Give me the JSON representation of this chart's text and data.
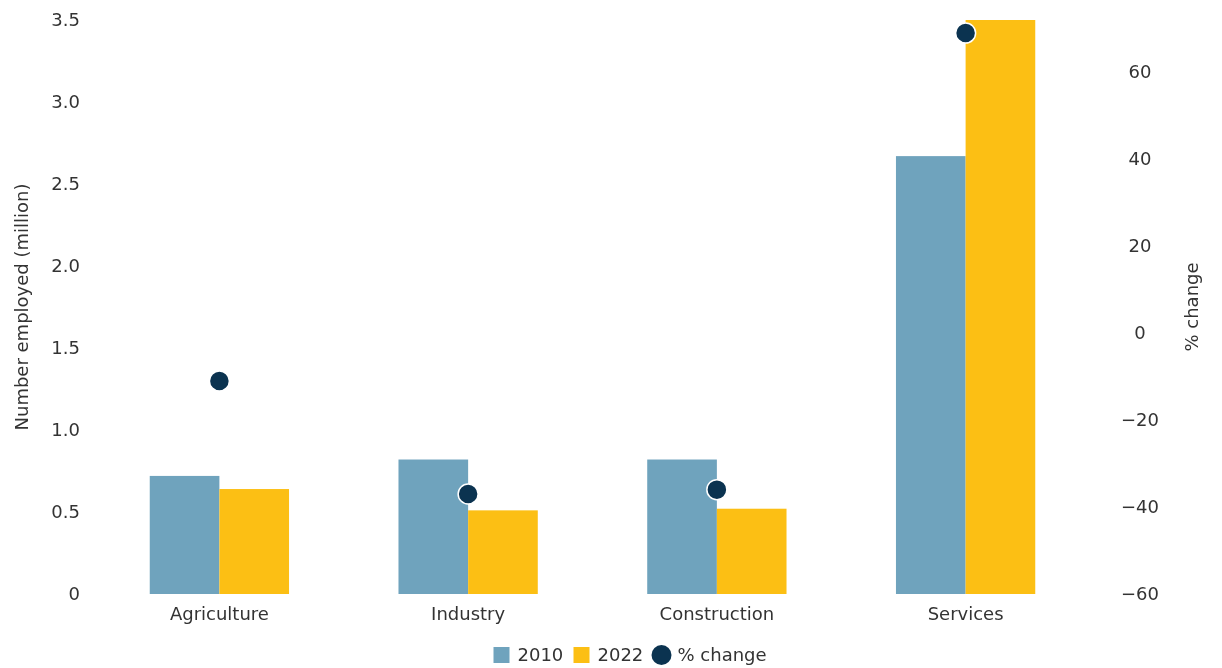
{
  "chart_data": {
    "type": "bar",
    "categories": [
      "Agriculture",
      "Industry",
      "Construction",
      "Services"
    ],
    "ylabel": "Number employed (million)",
    "y2label": "% change",
    "ylim": [
      0,
      3.5
    ],
    "yticks": [
      0,
      0.5,
      {
        "value": 1,
        "label": "1.0"
      },
      1.5,
      {
        "value": 2,
        "label": "2.0"
      },
      2.5,
      {
        "value": 3,
        "label": "3.0"
      },
      3.5
    ],
    "y2lim": [
      -60,
      72
    ],
    "y2ticks": [
      {
        "value": -60,
        "label": "−60"
      },
      {
        "value": -40,
        "label": "−40"
      },
      {
        "value": -20,
        "label": "−20"
      },
      0,
      20,
      40,
      60
    ],
    "series": [
      {
        "name": "2010",
        "color": "#6fa3bd",
        "values": [
          0.72,
          0.82,
          0.82,
          2.67
        ]
      },
      {
        "name": "2022",
        "color": "#fcbf14",
        "values": [
          0.64,
          0.51,
          0.52,
          3.5
        ]
      },
      {
        "name": "% change",
        "type": "scatter",
        "axis": "y2",
        "color": "#0b3350",
        "marker": "circle",
        "values": [
          -11,
          -37,
          -36,
          69
        ]
      }
    ],
    "grid": false,
    "legend": "bottom"
  }
}
